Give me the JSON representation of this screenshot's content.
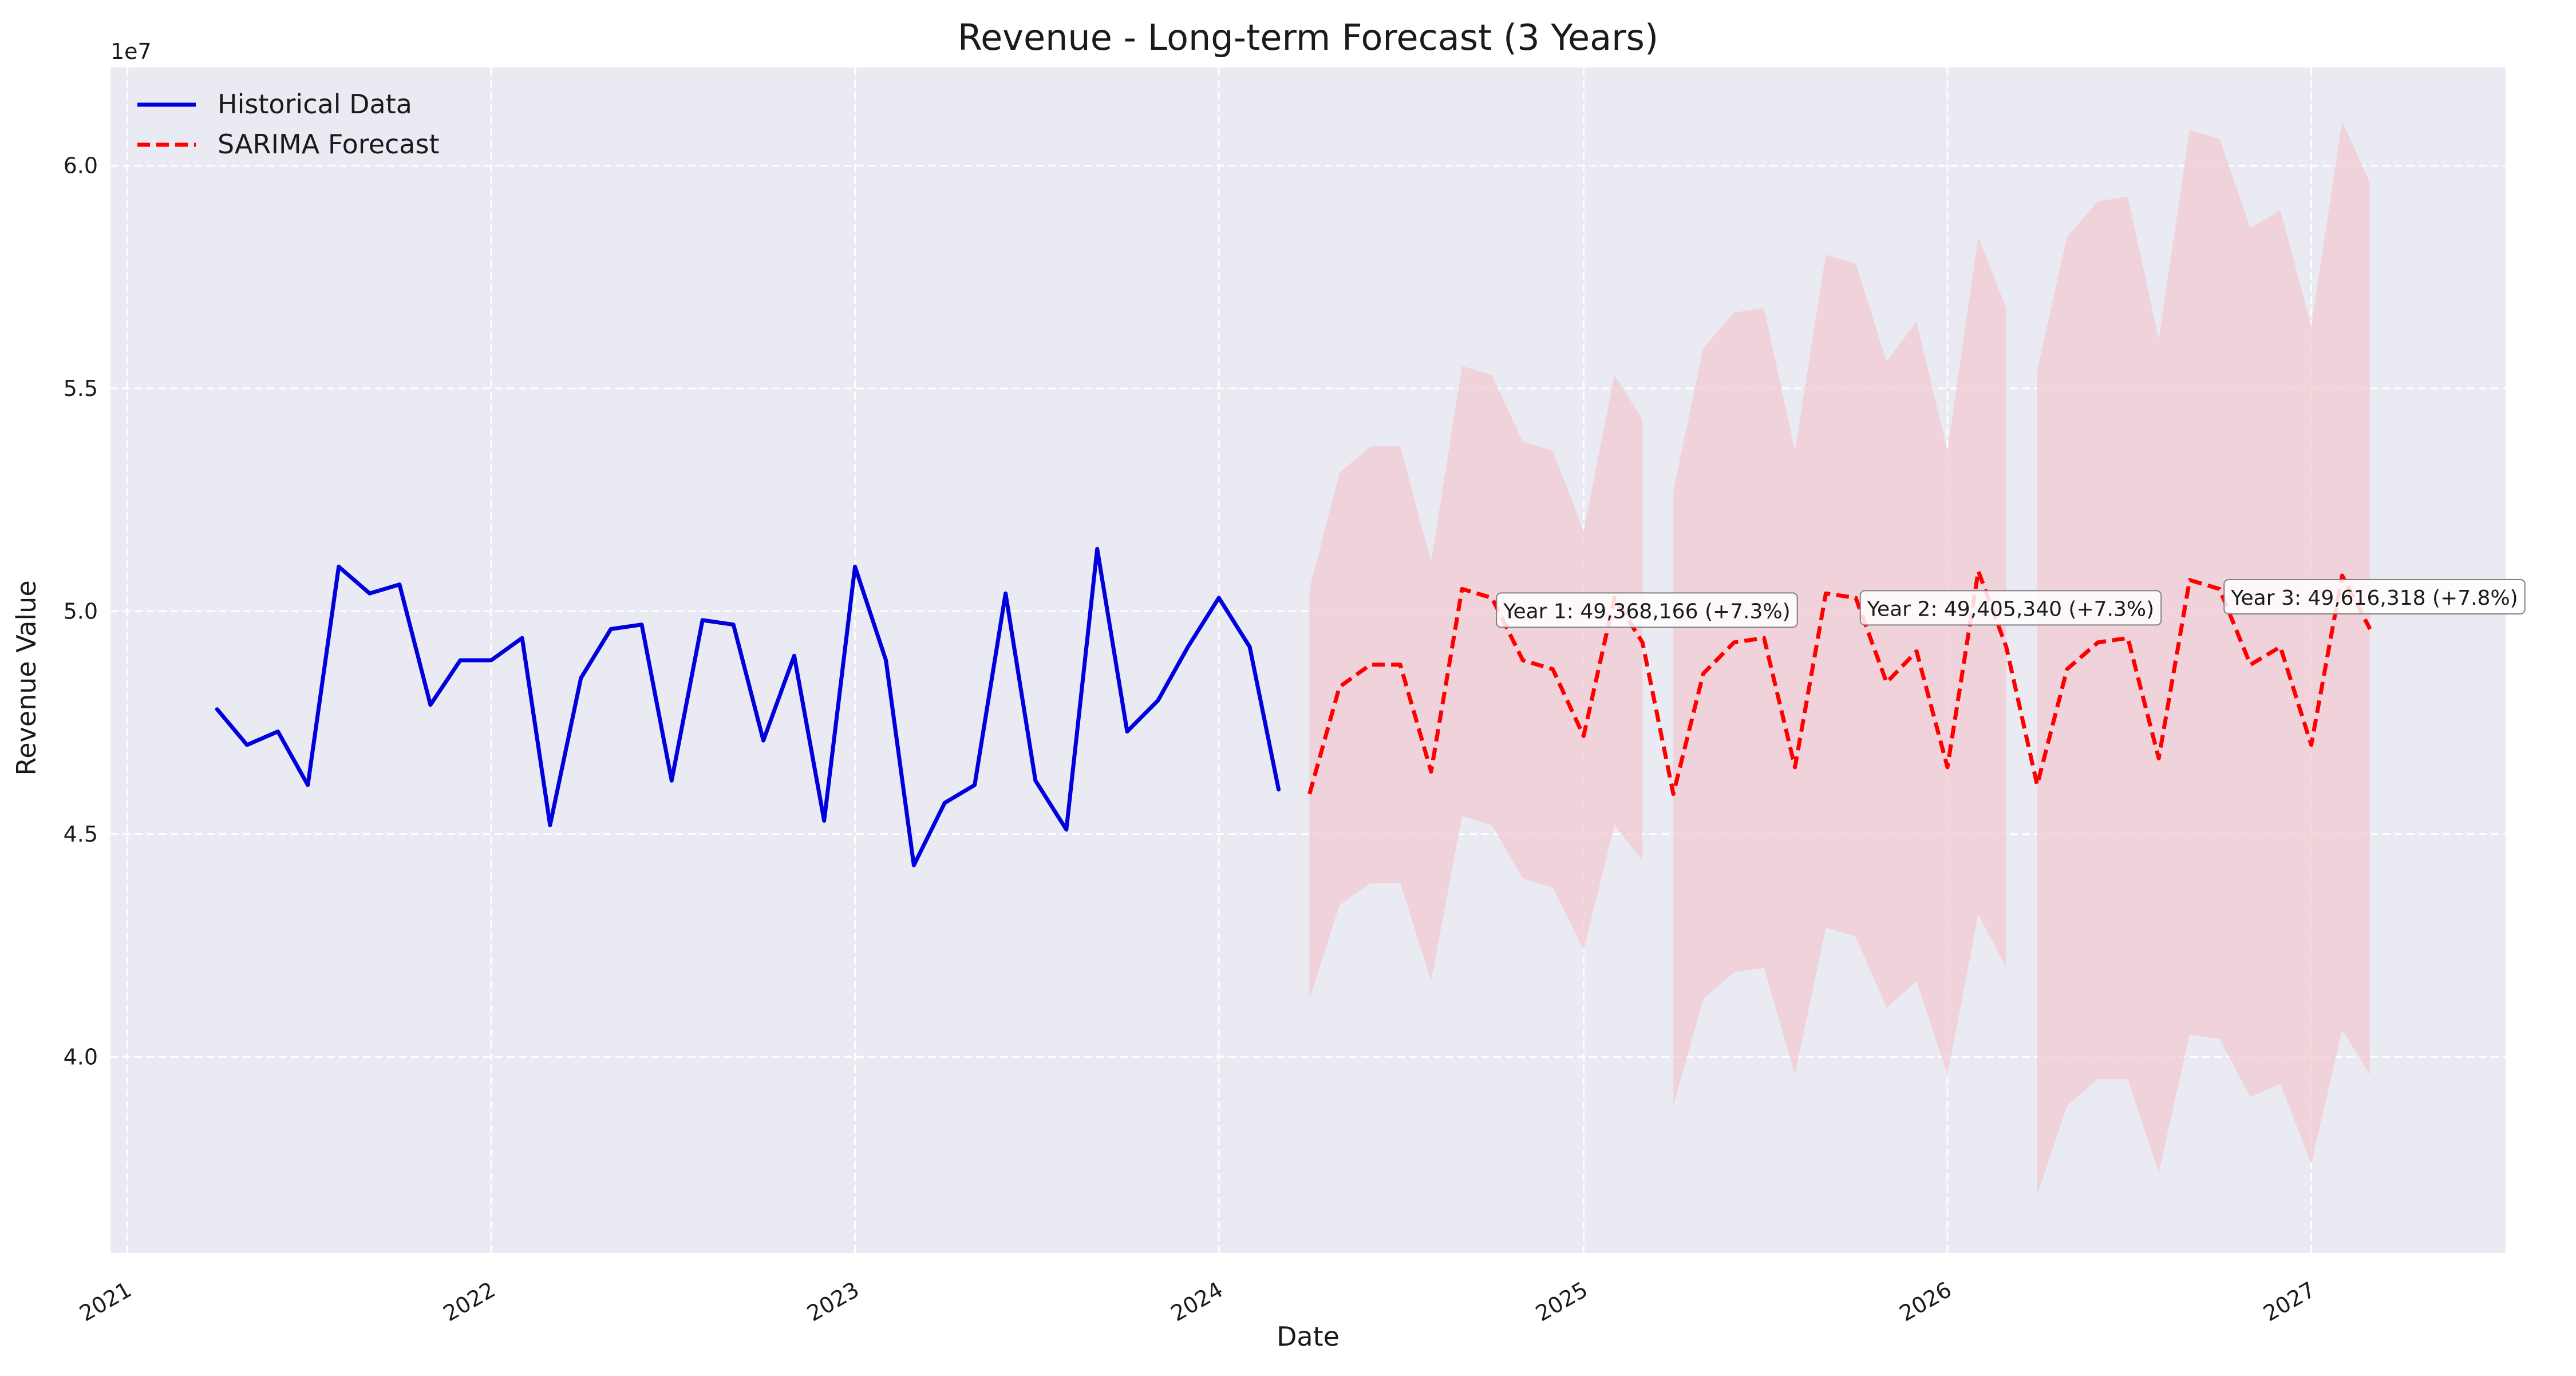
{
  "chart_data": {
    "type": "line",
    "title": "Revenue - Long-term Forecast (3 Years)",
    "xlabel": "Date",
    "ylabel": "Revenue Value",
    "y_offset_label": "1e7",
    "y_scale": 10000000,
    "xlim": [
      "2020-12-15",
      "2027-07-15"
    ],
    "ylim": [
      35600000,
      62200000
    ],
    "y_ticks": [
      {
        "value": 40000000,
        "label": "4.0"
      },
      {
        "value": 45000000,
        "label": "4.5"
      },
      {
        "value": 50000000,
        "label": "5.0"
      },
      {
        "value": 55000000,
        "label": "5.5"
      },
      {
        "value": 60000000,
        "label": "6.0"
      }
    ],
    "x_ticks": [
      {
        "value": "2021-01-01",
        "label": "2021"
      },
      {
        "value": "2022-01-01",
        "label": "2022"
      },
      {
        "value": "2023-01-01",
        "label": "2023"
      },
      {
        "value": "2024-01-01",
        "label": "2024"
      },
      {
        "value": "2025-01-01",
        "label": "2025"
      },
      {
        "value": "2026-01-01",
        "label": "2026"
      },
      {
        "value": "2027-01-01",
        "label": "2027"
      }
    ],
    "grid": true,
    "legend": {
      "position": "top-left",
      "entries": [
        "Historical Data",
        "SARIMA Forecast"
      ]
    },
    "series": [
      {
        "name": "Historical Data",
        "style": "solid",
        "color": "#0000dd",
        "x": [
          "2021-04-01",
          "2021-05-01",
          "2021-06-01",
          "2021-07-01",
          "2021-08-01",
          "2021-09-01",
          "2021-10-01",
          "2021-11-01",
          "2021-12-01",
          "2022-01-01",
          "2022-02-01",
          "2022-03-01",
          "2022-04-01",
          "2022-05-01",
          "2022-06-01",
          "2022-07-01",
          "2022-08-01",
          "2022-09-01",
          "2022-10-01",
          "2022-11-01",
          "2022-12-01",
          "2023-01-01",
          "2023-02-01",
          "2023-03-01",
          "2023-04-01",
          "2023-05-01",
          "2023-06-01",
          "2023-07-01",
          "2023-08-01",
          "2023-09-01",
          "2023-10-01",
          "2023-11-01",
          "2023-12-01",
          "2024-01-01",
          "2024-02-01",
          "2024-03-01"
        ],
        "y": [
          47800000,
          47000000,
          47300000,
          46100000,
          51000000,
          50400000,
          50600000,
          47900000,
          48900000,
          48900000,
          49400000,
          45200000,
          48500000,
          49600000,
          49700000,
          46200000,
          49800000,
          49700000,
          47100000,
          49000000,
          45300000,
          51000000,
          48900000,
          44300000,
          45700000,
          46100000,
          50400000,
          46200000,
          45100000,
          51400000,
          47300000,
          48000000,
          49200000,
          50300000,
          49200000,
          46000000
        ]
      },
      {
        "name": "SARIMA Forecast",
        "style": "dashed",
        "color": "#ff0000",
        "x": [
          "2024-04-01",
          "2024-05-01",
          "2024-06-01",
          "2024-07-01",
          "2024-08-01",
          "2024-09-01",
          "2024-10-01",
          "2024-11-01",
          "2024-12-01",
          "2025-01-01",
          "2025-02-01",
          "2025-03-01",
          "2025-04-01",
          "2025-05-01",
          "2025-06-01",
          "2025-07-01",
          "2025-08-01",
          "2025-09-01",
          "2025-10-01",
          "2025-11-01",
          "2025-12-01",
          "2026-01-01",
          "2026-02-01",
          "2026-03-01",
          "2026-04-01",
          "2026-05-01",
          "2026-06-01",
          "2026-07-01",
          "2026-08-01",
          "2026-09-01",
          "2026-10-01",
          "2026-11-01",
          "2026-12-01",
          "2027-01-01",
          "2027-02-01",
          "2027-03-01"
        ],
        "y": [
          45900000,
          48300000,
          48800000,
          48800000,
          46400000,
          50500000,
          50300000,
          48900000,
          48700000,
          47200000,
          50300000,
          49300000,
          45900000,
          48600000,
          49300000,
          49400000,
          46500000,
          50400000,
          50300000,
          48400000,
          49100000,
          46500000,
          50900000,
          49200000,
          46100000,
          48700000,
          49300000,
          49400000,
          46700000,
          50700000,
          50500000,
          48800000,
          49200000,
          47000000,
          50800000,
          49600000
        ]
      }
    ],
    "confidence_band": {
      "name": "confidence interval",
      "color": "#f2c9d2",
      "segments": [
        {
          "x": [
            "2024-04-01",
            "2024-05-01",
            "2024-06-01",
            "2024-07-01",
            "2024-08-01",
            "2024-09-01",
            "2024-10-01",
            "2024-11-01",
            "2024-12-01",
            "2025-01-01",
            "2025-02-01",
            "2025-03-01"
          ],
          "upper": [
            50500000,
            53100000,
            53700000,
            53700000,
            51100000,
            55500000,
            55300000,
            53800000,
            53600000,
            51800000,
            55300000,
            54300000
          ],
          "lower": [
            41300000,
            43400000,
            43900000,
            43900000,
            41700000,
            45400000,
            45200000,
            44000000,
            43800000,
            42400000,
            45200000,
            44400000
          ]
        },
        {
          "x": [
            "2025-04-01",
            "2025-05-01",
            "2025-06-01",
            "2025-07-01",
            "2025-08-01",
            "2025-09-01",
            "2025-10-01",
            "2025-11-01",
            "2025-12-01",
            "2026-01-01",
            "2026-02-01",
            "2026-03-01"
          ],
          "upper": [
            52700000,
            55900000,
            56700000,
            56800000,
            53600000,
            58000000,
            57800000,
            55600000,
            56500000,
            53600000,
            58400000,
            56800000
          ],
          "lower": [
            38900000,
            41300000,
            41900000,
            42000000,
            39600000,
            42900000,
            42700000,
            41100000,
            41700000,
            39600000,
            43200000,
            42000000
          ]
        },
        {
          "x": [
            "2026-04-01",
            "2026-05-01",
            "2026-06-01",
            "2026-07-01",
            "2026-08-01",
            "2026-09-01",
            "2026-10-01",
            "2026-11-01",
            "2026-12-01",
            "2027-01-01",
            "2027-02-01",
            "2027-03-01"
          ],
          "upper": [
            55400000,
            58400000,
            59200000,
            59300000,
            56100000,
            60800000,
            60600000,
            58600000,
            59000000,
            56400000,
            61000000,
            59600000
          ],
          "lower": [
            36900000,
            38900000,
            39500000,
            39500000,
            37400000,
            40500000,
            40400000,
            39100000,
            39400000,
            37600000,
            40600000,
            39600000
          ]
        }
      ]
    },
    "annotations": [
      {
        "text": "Year 1: 49,368,166 (+7.3%)",
        "x": "2024-10-01",
        "y": 50000000
      },
      {
        "text": "Year 2: 49,405,340 (+7.3%)",
        "x": "2025-10-01",
        "y": 50050000
      },
      {
        "text": "Year 3: 49,616,318 (+7.8%)",
        "x": "2026-10-01",
        "y": 50300000
      }
    ]
  }
}
